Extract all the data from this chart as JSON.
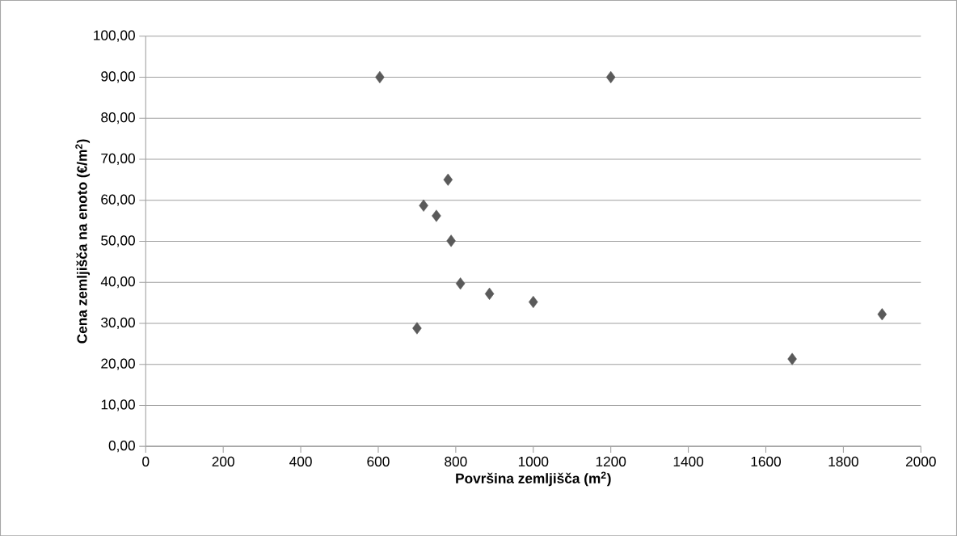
{
  "chart_data": {
    "type": "scatter",
    "xlabel": "Površina zemljišča (m$^{2}$)",
    "ylabel": "Cena zemljišča na enoto (€/m$^{2}$)",
    "x": [
      604,
      1200,
      780,
      717,
      750,
      788,
      812,
      887,
      1000,
      700,
      1668,
      1900
    ],
    "values": [
      90,
      90,
      65,
      58.7,
      56.2,
      50.1,
      39.7,
      37.2,
      35.2,
      28.8,
      21.3,
      32.2
    ],
    "color": "#5a5a5a",
    "marker": "diamond",
    "xlim": [
      0,
      2000
    ],
    "xticks": [
      0,
      200,
      400,
      600,
      800,
      1000,
      1200,
      1400,
      1600,
      1800,
      2000
    ],
    "ylim": [
      0,
      100
    ],
    "yticks": [
      {
        "value": 0,
        "label": "0,00"
      },
      {
        "value": 10,
        "label": "10,00"
      },
      {
        "value": 20,
        "label": "20,00"
      },
      {
        "value": 30,
        "label": "30,00"
      },
      {
        "value": 40,
        "label": "40,00"
      },
      {
        "value": 50,
        "label": "50,00"
      },
      {
        "value": 60,
        "label": "60,00"
      },
      {
        "value": 70,
        "label": "70,00"
      },
      {
        "value": 80,
        "label": "80,00"
      },
      {
        "value": 90,
        "label": "90,00"
      },
      {
        "value": 100,
        "label": "100,00"
      }
    ],
    "grid": "y"
  }
}
